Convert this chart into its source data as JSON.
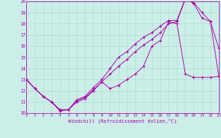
{
  "xlabel": "Windchill (Refroidissement éolien,°C)",
  "bg_color": "#cceee8",
  "grid_color": "#aaddcc",
  "line_color": "#aa00aa",
  "xlim": [
    0,
    23
  ],
  "ylim": [
    10,
    20
  ],
  "xticks": [
    0,
    1,
    2,
    3,
    4,
    5,
    6,
    7,
    8,
    9,
    10,
    11,
    12,
    13,
    14,
    15,
    16,
    17,
    18,
    19,
    20,
    21,
    22,
    23
  ],
  "yticks": [
    10,
    11,
    12,
    13,
    14,
    15,
    16,
    17,
    18,
    19,
    20
  ],
  "curve1_x": [
    0,
    1,
    2,
    3,
    4,
    5,
    6,
    7,
    8,
    9,
    10,
    11,
    12,
    13,
    14,
    15,
    16,
    17,
    18,
    19,
    20,
    21,
    22,
    23
  ],
  "curve1_y": [
    13,
    12.2,
    11.5,
    11.0,
    10.3,
    10.3,
    11.1,
    11.4,
    12.1,
    12.8,
    13.5,
    14.2,
    14.8,
    15.5,
    16.1,
    16.6,
    17.2,
    18.0,
    18.2,
    20.2,
    19.9,
    19.0,
    18.2,
    13.3
  ],
  "curve2_x": [
    0,
    1,
    2,
    3,
    4,
    5,
    6,
    7,
    8,
    9,
    10,
    11,
    12,
    13,
    14,
    15,
    16,
    17,
    18,
    19,
    20,
    21,
    22,
    23
  ],
  "curve2_y": [
    13,
    12.2,
    11.5,
    11.0,
    10.3,
    10.3,
    11.2,
    11.5,
    12.3,
    13.0,
    14.0,
    15.0,
    15.5,
    16.2,
    16.8,
    17.2,
    17.8,
    18.3,
    18.3,
    20.3,
    19.8,
    18.5,
    18.2,
    15.8
  ],
  "curve3_x": [
    0,
    1,
    2,
    3,
    4,
    5,
    6,
    7,
    8,
    9,
    10,
    11,
    12,
    13,
    14,
    15,
    16,
    17,
    18,
    19,
    20,
    21,
    22,
    23
  ],
  "curve3_y": [
    13,
    12.2,
    11.5,
    11.0,
    10.2,
    10.3,
    11.0,
    11.3,
    12.0,
    12.8,
    12.2,
    12.5,
    13.0,
    13.5,
    14.2,
    16.0,
    16.5,
    18.2,
    18.0,
    13.5,
    13.2,
    13.2,
    13.2,
    13.3
  ]
}
